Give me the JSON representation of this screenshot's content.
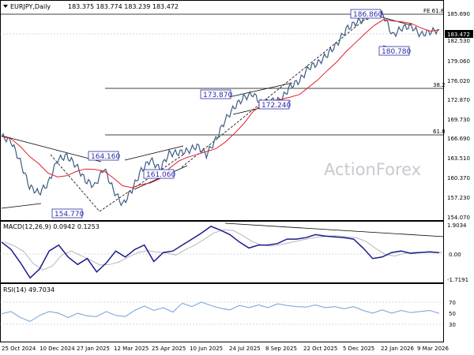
{
  "header": {
    "symbol": "EURJPY,Daily",
    "ohlc": "183.375 183.774 183.239 183.472"
  },
  "price_panel": {
    "y_ticks": [
      "185.690",
      "182.530",
      "179.060",
      "176.020",
      "172.870",
      "169.730",
      "166.690",
      "163.510",
      "160.370",
      "157.230",
      "154.070"
    ],
    "current_price": "183.472",
    "fib_levels": [
      {
        "label": "FE 61.8",
        "value": 186.86
      },
      {
        "label": "38.2",
        "value": 175.3
      },
      {
        "label": "61.8",
        "value": 167.3
      }
    ],
    "annotations": [
      {
        "text": "186.860",
        "value": 186.86
      },
      {
        "text": "180.780",
        "value": 180.78
      },
      {
        "text": "173.870",
        "value": 173.87
      },
      {
        "text": "172.240",
        "value": 172.24
      },
      {
        "text": "164.160",
        "value": 164.16
      },
      {
        "text": "161.060",
        "value": 161.06
      },
      {
        "text": "154.770",
        "value": 154.77
      }
    ],
    "watermark": "ActionForex"
  },
  "macd_panel": {
    "label": "MACD(12,26,9) 0.0942 0.1253",
    "y_ticks": [
      "1.9034",
      "0.00",
      "-1.7191"
    ]
  },
  "rsi_panel": {
    "label": "RSI(14) 49.7034",
    "y_ticks": [
      "70",
      "50",
      "30"
    ]
  },
  "x_axis": {
    "labels": [
      "25 Oct 2024",
      "10 Dec 2024",
      "27 Jan 2025",
      "12 Mar 2025",
      "25 Apr 2025",
      "10 Jun 2025",
      "24 Jul 2025",
      "8 Sep 2025",
      "22 Oct 2025",
      "5 Dec 2025",
      "22 Jan 2026",
      "9 Mar 2026"
    ]
  },
  "chart_data": {
    "type": "line",
    "title": "EURJPY,Daily",
    "series": [
      {
        "name": "EURJPY",
        "values": [
          166.5,
          165.8,
          162.5,
          158.5,
          157.5,
          159,
          162.8,
          163.4,
          161.9,
          159.5,
          158.6,
          161.5,
          158,
          155.6,
          158,
          161.1,
          162.8,
          161.3,
          163.8,
          163.9,
          164.2,
          165,
          163.6,
          166,
          169.1,
          171.2,
          172.7,
          173.3,
          171.6,
          172.2,
          172.3,
          174.5,
          175.4,
          177.5,
          178.2,
          179.6,
          181.2,
          183.6,
          184.6,
          185.3,
          186.2,
          185.9,
          182.6,
          183.8,
          184.1,
          182.7,
          183.2,
          183.5
        ]
      }
    ],
    "x_labels": [
      "25 Oct 2024",
      "10 Dec 2024",
      "27 Jan 2025",
      "12 Mar 2025",
      "25 Apr 2025",
      "10 Jun 2025",
      "24 Jul 2025",
      "8 Sep 2025",
      "22 Oct 2025",
      "5 Dec 2025",
      "22 Jan 2026",
      "9 Mar 2026"
    ],
    "ylim": [
      153.3,
      188.0
    ],
    "macd": [
      0.8,
      0.3,
      -0.6,
      -1.6,
      -1.0,
      0.2,
      0.6,
      -0.2,
      -0.7,
      -0.3,
      -1.2,
      -0.6,
      0.2,
      -0.2,
      0.3,
      0.6,
      -0.5,
      0.1,
      0.2,
      0.6,
      1.0,
      1.4,
      1.85,
      1.6,
      1.3,
      0.8,
      0.4,
      0.6,
      0.6,
      0.7,
      1.0,
      1.0,
      1.1,
      1.3,
      1.2,
      1.15,
      1.1,
      1.0,
      0.4,
      -0.3,
      -0.2,
      0.1,
      0.2,
      0.05,
      0.1,
      0.15,
      0.09
    ],
    "rsi": [
      49,
      53,
      42,
      35,
      46,
      53,
      50,
      42,
      50,
      45,
      44,
      53,
      46,
      44,
      55,
      63,
      55,
      60,
      52,
      68,
      62,
      70,
      64,
      59,
      56,
      64,
      60,
      65,
      60,
      67,
      64,
      62,
      61,
      65,
      60,
      62,
      58,
      62,
      55,
      50,
      56,
      50,
      55,
      51,
      53,
      55,
      49.7
    ]
  }
}
